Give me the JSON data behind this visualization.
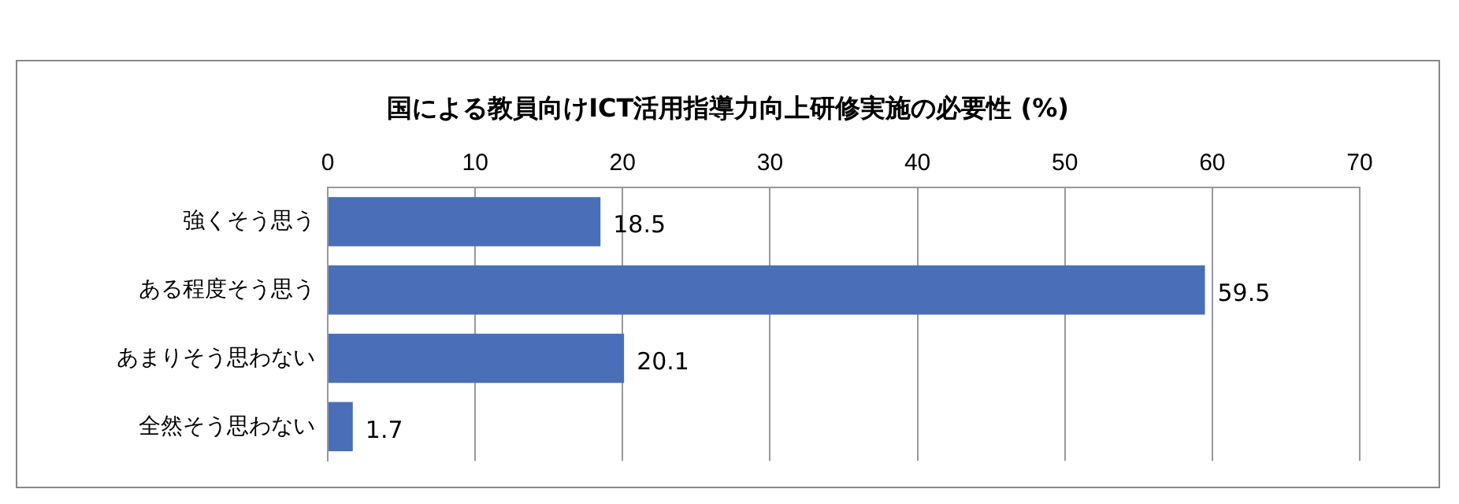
{
  "chart_data": {
    "type": "bar",
    "orientation": "horizontal",
    "title": "国による教員向けICT活用指導力向上研修実施の必要性 (%)",
    "categories": [
      "強くそう思う",
      "ある程度そう思う",
      "あまりそう思わない",
      "全然そう思わない"
    ],
    "values": [
      18.5,
      59.5,
      20.1,
      1.7
    ],
    "color": "#4a6fb8",
    "xlim": [
      0,
      70
    ],
    "xticks": [
      0,
      10,
      20,
      30,
      40,
      50,
      60,
      70
    ],
    "grid": "x",
    "data_labels": true,
    "legend": false
  }
}
